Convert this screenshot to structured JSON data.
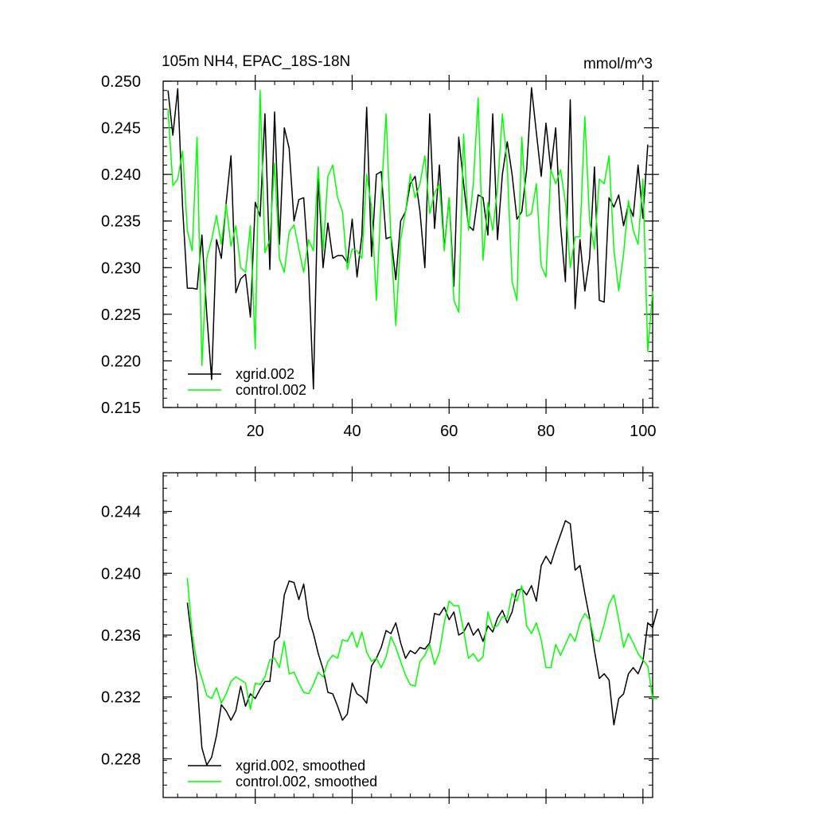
{
  "chart_data": [
    {
      "type": "line",
      "title": "105m NH4, EPAC_18S-18N",
      "title_right": "mmol/m^3",
      "xlabel": "",
      "ylabel": "",
      "xlim": [
        1,
        102
      ],
      "ylim": [
        0.215,
        0.25
      ],
      "x_ticks": [
        20,
        40,
        60,
        80,
        100
      ],
      "x_tick_labels": [
        "20",
        "40",
        "60",
        "80",
        "100"
      ],
      "y_ticks": [
        0.215,
        0.22,
        0.225,
        0.23,
        0.235,
        0.24,
        0.245,
        0.25
      ],
      "y_tick_labels": [
        "0.215",
        "0.220",
        "0.225",
        "0.230",
        "0.235",
        "0.240",
        "0.245",
        "0.250"
      ],
      "grid": false,
      "legend_position": "bottom-left",
      "x_start": 2,
      "series": [
        {
          "name": "xgrid.002",
          "color": "#000000",
          "values": [
            0.249,
            0.2442,
            0.2492,
            0.2365,
            0.2278,
            0.2278,
            0.2277,
            0.2335,
            0.225,
            0.218,
            0.233,
            0.231,
            0.237,
            0.242,
            0.2273,
            0.2288,
            0.2293,
            0.2247,
            0.237,
            0.2355,
            0.2465,
            0.2298,
            0.2467,
            0.2325,
            0.245,
            0.2428,
            0.235,
            0.2373,
            0.2375,
            0.23,
            0.217,
            0.2398,
            0.23,
            0.2348,
            0.231,
            0.2313,
            0.2313,
            0.2305,
            0.2352,
            0.229,
            0.2335,
            0.2472,
            0.2312,
            0.24,
            0.2403,
            0.2331,
            0.2333,
            0.2287,
            0.235,
            0.236,
            0.239,
            0.2398,
            0.236,
            0.23,
            0.2465,
            0.2342,
            0.241,
            0.232,
            0.2375,
            0.228,
            0.244,
            0.239,
            0.2345,
            0.234,
            0.2378,
            0.2375,
            0.2335,
            0.2465,
            0.233,
            0.24,
            0.2435,
            0.24,
            0.2352,
            0.236,
            0.2405,
            0.2493,
            0.2445,
            0.2398,
            0.2455,
            0.2405,
            0.245,
            0.2345,
            0.2285,
            0.248,
            0.2256,
            0.233,
            0.2275,
            0.231,
            0.2408,
            0.2265,
            0.2263,
            0.2375,
            0.2365,
            0.2378,
            0.2345,
            0.2368,
            0.2355,
            0.241,
            0.2353,
            0.2432
          ]
        },
        {
          "name": "control.002",
          "color": "#00ff00",
          "values": [
            0.247,
            0.2388,
            0.2395,
            0.2425,
            0.234,
            0.2318,
            0.244,
            0.2195,
            0.231,
            0.233,
            0.2356,
            0.2325,
            0.2368,
            0.2323,
            0.2345,
            0.23,
            0.2295,
            0.2345,
            0.2213,
            0.249,
            0.2316,
            0.233,
            0.2412,
            0.231,
            0.2295,
            0.2338,
            0.2346,
            0.232,
            0.2295,
            0.233,
            0.2318,
            0.2408,
            0.2318,
            0.2398,
            0.241,
            0.2375,
            0.236,
            0.2298,
            0.232,
            0.2318,
            0.231,
            0.24,
            0.2365,
            0.2265,
            0.2375,
            0.2465,
            0.233,
            0.2238,
            0.233,
            0.236,
            0.24,
            0.2375,
            0.239,
            0.242,
            0.2358,
            0.238,
            0.239,
            0.2318,
            0.2375,
            0.2265,
            0.2252,
            0.2443,
            0.234,
            0.239,
            0.2482,
            0.2308,
            0.237,
            0.234,
            0.2385,
            0.2465,
            0.241,
            0.2285,
            0.2265,
            0.244,
            0.2355,
            0.2358,
            0.239,
            0.2302,
            0.229,
            0.2405,
            0.239,
            0.2405,
            0.237,
            0.23,
            0.2333,
            0.2333,
            0.2462,
            0.235,
            0.232,
            0.2395,
            0.239,
            0.242,
            0.232,
            0.2275,
            0.2315,
            0.2372,
            0.234,
            0.2325,
            0.2395,
            0.221,
            0.2275
          ]
        }
      ]
    },
    {
      "type": "line",
      "title": "",
      "xlabel": "",
      "ylabel": "",
      "xlim": [
        1,
        102
      ],
      "ylim": [
        0.2255,
        0.2465
      ],
      "x_ticks": [
        20,
        40,
        60,
        80,
        100
      ],
      "x_tick_labels": [],
      "y_ticks": [
        0.228,
        0.232,
        0.236,
        0.24,
        0.244
      ],
      "y_tick_labels": [
        "0.228",
        "0.232",
        "0.236",
        "0.240",
        "0.244"
      ],
      "grid": false,
      "legend_position": "bottom-left",
      "x_start": 6,
      "series": [
        {
          "name": "xgrid.002, smoothed",
          "color": "#000000",
          "values": [
            0.2381,
            0.2355,
            0.233,
            0.2287,
            0.2276,
            0.2281,
            0.2295,
            0.2315,
            0.2311,
            0.2305,
            0.2311,
            0.2327,
            0.2314,
            0.2322,
            0.2319,
            0.2325,
            0.233,
            0.233,
            0.2356,
            0.2359,
            0.2386,
            0.2395,
            0.2394,
            0.2383,
            0.2393,
            0.2371,
            0.2361,
            0.2348,
            0.2338,
            0.2323,
            0.2322,
            0.2314,
            0.2305,
            0.2309,
            0.2329,
            0.2322,
            0.232,
            0.2316,
            0.234,
            0.2345,
            0.2352,
            0.2363,
            0.2361,
            0.2368,
            0.2355,
            0.2345,
            0.235,
            0.2348,
            0.2352,
            0.2351,
            0.2355,
            0.2374,
            0.2373,
            0.2378,
            0.237,
            0.2375,
            0.236,
            0.2362,
            0.2368,
            0.236,
            0.2364,
            0.2356,
            0.2366,
            0.2362,
            0.2371,
            0.2376,
            0.2368,
            0.2375,
            0.2389,
            0.239,
            0.2386,
            0.2392,
            0.2382,
            0.2405,
            0.2411,
            0.2406,
            0.2416,
            0.2425,
            0.2434,
            0.2432,
            0.2402,
            0.2405,
            0.2387,
            0.2371,
            0.235,
            0.2332,
            0.2335,
            0.2331,
            0.2302,
            0.2319,
            0.2322,
            0.2335,
            0.2339,
            0.2335,
            0.2343,
            0.2368,
            0.2365,
            0.2377
          ]
        },
        {
          "name": "control.002, smoothed",
          "color": "#00ff00",
          "values": [
            0.2397,
            0.2361,
            0.2342,
            0.2332,
            0.2321,
            0.2319,
            0.2326,
            0.2316,
            0.2322,
            0.233,
            0.2333,
            0.2331,
            0.2329,
            0.2312,
            0.2329,
            0.2328,
            0.2333,
            0.2344,
            0.2345,
            0.2339,
            0.2356,
            0.2335,
            0.2336,
            0.2329,
            0.2323,
            0.2322,
            0.2328,
            0.2336,
            0.2333,
            0.2343,
            0.2347,
            0.2345,
            0.2357,
            0.2356,
            0.2362,
            0.2352,
            0.2362,
            0.2349,
            0.2343,
            0.2345,
            0.2339,
            0.2346,
            0.2359,
            0.2352,
            0.2343,
            0.2334,
            0.2328,
            0.2327,
            0.2343,
            0.2347,
            0.2354,
            0.2341,
            0.2349,
            0.2368,
            0.2382,
            0.2379,
            0.2379,
            0.2363,
            0.2345,
            0.2348,
            0.2343,
            0.2346,
            0.2375,
            0.2365,
            0.2366,
            0.2372,
            0.2371,
            0.2387,
            0.2382,
            0.2392,
            0.2366,
            0.2361,
            0.2368,
            0.2357,
            0.2339,
            0.2339,
            0.2354,
            0.2347,
            0.2354,
            0.2361,
            0.2356,
            0.2368,
            0.2374,
            0.237,
            0.2357,
            0.2356,
            0.2367,
            0.238,
            0.2386,
            0.237,
            0.2352,
            0.2361,
            0.2355,
            0.2348,
            0.2344,
            0.234,
            0.2319,
            0.2319
          ]
        }
      ]
    }
  ]
}
